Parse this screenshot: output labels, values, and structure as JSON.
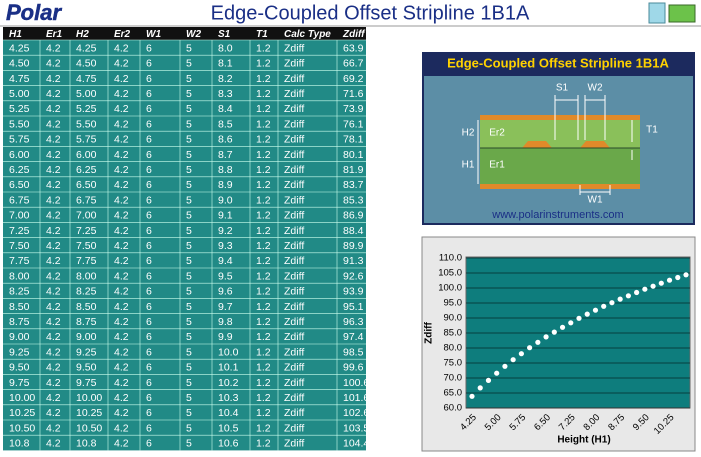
{
  "header": {
    "logo": "Polar",
    "title": "Edge-Coupled Offset Stripline 1B1A"
  },
  "table": {
    "columns": [
      "H1",
      "Er1",
      "H2",
      "Er2",
      "W1",
      "W2",
      "S1",
      "T1",
      "Calc Type",
      "Zdiff"
    ],
    "rows": [
      [
        "4.25",
        "4.2",
        "4.25",
        "4.2",
        "6",
        "5",
        "8.0",
        "1.2",
        "Zdiff",
        "63.9"
      ],
      [
        "4.50",
        "4.2",
        "4.50",
        "4.2",
        "6",
        "5",
        "8.1",
        "1.2",
        "Zdiff",
        "66.7"
      ],
      [
        "4.75",
        "4.2",
        "4.75",
        "4.2",
        "6",
        "5",
        "8.2",
        "1.2",
        "Zdiff",
        "69.2"
      ],
      [
        "5.00",
        "4.2",
        "5.00",
        "4.2",
        "6",
        "5",
        "8.3",
        "1.2",
        "Zdiff",
        "71.6"
      ],
      [
        "5.25",
        "4.2",
        "5.25",
        "4.2",
        "6",
        "5",
        "8.4",
        "1.2",
        "Zdiff",
        "73.9"
      ],
      [
        "5.50",
        "4.2",
        "5.50",
        "4.2",
        "6",
        "5",
        "8.5",
        "1.2",
        "Zdiff",
        "76.1"
      ],
      [
        "5.75",
        "4.2",
        "5.75",
        "4.2",
        "6",
        "5",
        "8.6",
        "1.2",
        "Zdiff",
        "78.1"
      ],
      [
        "6.00",
        "4.2",
        "6.00",
        "4.2",
        "6",
        "5",
        "8.7",
        "1.2",
        "Zdiff",
        "80.1"
      ],
      [
        "6.25",
        "4.2",
        "6.25",
        "4.2",
        "6",
        "5",
        "8.8",
        "1.2",
        "Zdiff",
        "81.9"
      ],
      [
        "6.50",
        "4.2",
        "6.50",
        "4.2",
        "6",
        "5",
        "8.9",
        "1.2",
        "Zdiff",
        "83.7"
      ],
      [
        "6.75",
        "4.2",
        "6.75",
        "4.2",
        "6",
        "5",
        "9.0",
        "1.2",
        "Zdiff",
        "85.3"
      ],
      [
        "7.00",
        "4.2",
        "7.00",
        "4.2",
        "6",
        "5",
        "9.1",
        "1.2",
        "Zdiff",
        "86.9"
      ],
      [
        "7.25",
        "4.2",
        "7.25",
        "4.2",
        "6",
        "5",
        "9.2",
        "1.2",
        "Zdiff",
        "88.4"
      ],
      [
        "7.50",
        "4.2",
        "7.50",
        "4.2",
        "6",
        "5",
        "9.3",
        "1.2",
        "Zdiff",
        "89.9"
      ],
      [
        "7.75",
        "4.2",
        "7.75",
        "4.2",
        "6",
        "5",
        "9.4",
        "1.2",
        "Zdiff",
        "91.3"
      ],
      [
        "8.00",
        "4.2",
        "8.00",
        "4.2",
        "6",
        "5",
        "9.5",
        "1.2",
        "Zdiff",
        "92.6"
      ],
      [
        "8.25",
        "4.2",
        "8.25",
        "4.2",
        "6",
        "5",
        "9.6",
        "1.2",
        "Zdiff",
        "93.9"
      ],
      [
        "8.50",
        "4.2",
        "8.50",
        "4.2",
        "6",
        "5",
        "9.7",
        "1.2",
        "Zdiff",
        "95.1"
      ],
      [
        "8.75",
        "4.2",
        "8.75",
        "4.2",
        "6",
        "5",
        "9.8",
        "1.2",
        "Zdiff",
        "96.3"
      ],
      [
        "9.00",
        "4.2",
        "9.00",
        "4.2",
        "6",
        "5",
        "9.9",
        "1.2",
        "Zdiff",
        "97.4"
      ],
      [
        "9.25",
        "4.2",
        "9.25",
        "4.2",
        "6",
        "5",
        "10.0",
        "1.2",
        "Zdiff",
        "98.5"
      ],
      [
        "9.50",
        "4.2",
        "9.50",
        "4.2",
        "6",
        "5",
        "10.1",
        "1.2",
        "Zdiff",
        "99.6"
      ],
      [
        "9.75",
        "4.2",
        "9.75",
        "4.2",
        "6",
        "5",
        "10.2",
        "1.2",
        "Zdiff",
        "100.6"
      ],
      [
        "10.00",
        "4.2",
        "10.00",
        "4.2",
        "6",
        "5",
        "10.3",
        "1.2",
        "Zdiff",
        "101.6"
      ],
      [
        "10.25",
        "4.2",
        "10.25",
        "4.2",
        "6",
        "5",
        "10.4",
        "1.2",
        "Zdiff",
        "102.6"
      ],
      [
        "10.50",
        "4.2",
        "10.50",
        "4.2",
        "6",
        "5",
        "10.5",
        "1.2",
        "Zdiff",
        "103.5"
      ],
      [
        "10.8",
        "4.2",
        "10.8",
        "4.2",
        "6",
        "5",
        "10.6",
        "1.2",
        "Zdiff",
        "104.4"
      ]
    ]
  },
  "diagram": {
    "title": "Edge-Coupled Offset Stripline 1B1A",
    "labels": {
      "s1": "S1",
      "w2": "W2",
      "h2": "H2",
      "er2": "Er2",
      "t1": "T1",
      "h1": "H1",
      "er1": "Er1",
      "w1": "W1"
    },
    "url": "www.polarinstruments.com"
  },
  "chart_data": {
    "type": "line",
    "xlabel": "Height (H1)",
    "ylabel": "Zdiff",
    "categories": [
      "4.25",
      null,
      null,
      "5.00",
      null,
      null,
      "5.75",
      null,
      null,
      "6.50",
      null,
      null,
      "7.25",
      null,
      null,
      "8.00",
      null,
      null,
      "8.75",
      null,
      null,
      "9.50",
      null,
      null,
      "10.25",
      null,
      null
    ],
    "values": [
      63.9,
      66.7,
      69.2,
      71.6,
      73.9,
      76.1,
      78.1,
      80.1,
      81.9,
      83.7,
      85.3,
      86.9,
      88.4,
      89.9,
      91.3,
      92.6,
      93.9,
      95.1,
      96.3,
      97.4,
      98.5,
      99.6,
      100.6,
      101.6,
      102.6,
      103.5,
      104.4
    ],
    "color": "#ffffff",
    "ylim": [
      60,
      110
    ],
    "yticks": [
      {
        "value": 60,
        "label": "60.0"
      },
      {
        "value": 65,
        "label": "65.0"
      },
      {
        "value": 70,
        "label": "70.0"
      },
      {
        "value": 75,
        "label": "75.0"
      },
      {
        "value": 80,
        "label": "80.0"
      },
      {
        "value": 85,
        "label": "85.0"
      },
      {
        "value": 90,
        "label": "90.0"
      },
      {
        "value": 95,
        "label": "95.0"
      },
      {
        "value": 100,
        "label": "100.0"
      },
      {
        "value": 105,
        "label": "105.0"
      },
      {
        "value": 110,
        "label": "110.0"
      }
    ],
    "grid": true
  }
}
